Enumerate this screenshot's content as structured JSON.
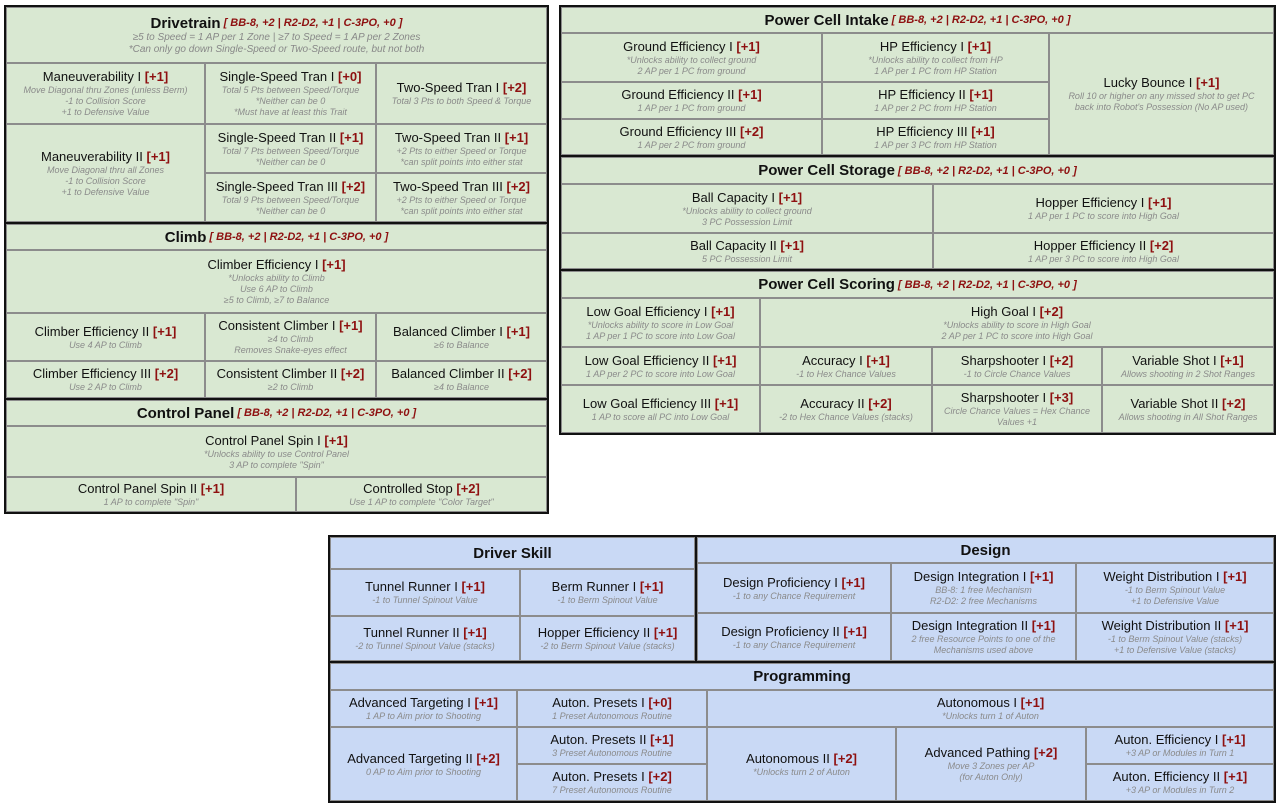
{
  "drivetrain": {
    "title": "Drivetrain",
    "costs": "[ BB-8, +2  |  R2-D2, +1  |  C-3PO, +0 ]",
    "rules": [
      "≥5 to Speed = 1 AP per 1 Zone  |  ≥7 to Speed = 1 AP per 2 Zones",
      "*Can only go down Single-Speed or Two-Speed route, but not both"
    ],
    "skills": [
      {
        "name": "Maneuverability I",
        "cost": "[+1]",
        "desc": [
          "Move Diagonal thru Zones (unless Berm)",
          "-1 to Collision Score",
          "+1 to Defensive Value"
        ]
      },
      {
        "name": "Single-Speed Tran I",
        "cost": "[+0]",
        "desc": [
          "Total 5 Pts between Speed/Torque",
          "*Neither can be 0",
          "*Must have at least this Trait"
        ]
      },
      {
        "name": "Two-Speed Tran I",
        "cost": "[+2]",
        "desc": [
          "Total 3 Pts to both Speed & Torque"
        ]
      },
      {
        "name": "Maneuverability II",
        "cost": "[+1]",
        "desc": [
          "Move Diagonal thru all Zones",
          "-1 to Collision Score",
          "+1 to Defensive Value"
        ]
      },
      {
        "name": "Single-Speed Tran II",
        "cost": "[+1]",
        "desc": [
          "Total 7 Pts between Speed/Torque",
          "*Neither can be 0"
        ]
      },
      {
        "name": "Two-Speed Tran II",
        "cost": "[+1]",
        "desc": [
          "+2 Pts to either Speed or Torque",
          "*can split points into either stat"
        ]
      },
      {
        "name": "Single-Speed Tran III",
        "cost": "[+2]",
        "desc": [
          "Total 9 Pts between Speed/Torque",
          "*Neither can be 0"
        ]
      },
      {
        "name": "Two-Speed Tran III",
        "cost": "[+2]",
        "desc": [
          "+2 Pts to either Speed or Torque",
          "*can split points into either stat"
        ]
      }
    ]
  },
  "climb": {
    "title": "Climb",
    "costs": "[ BB-8, +2  |  R2-D2, +1  |  C-3PO, +0 ]",
    "skills": [
      {
        "name": "Climber Efficiency I",
        "cost": "[+1]",
        "desc": [
          "*Unlocks ability to Climb",
          "Use 6 AP to Climb",
          "≥5 to Climb, ≥7 to Balance"
        ]
      },
      {
        "name": "Climber Efficiency II",
        "cost": "[+1]",
        "desc": [
          "Use 4 AP to Climb"
        ]
      },
      {
        "name": "Consistent Climber I",
        "cost": "[+1]",
        "desc": [
          "≥4 to Climb",
          "Removes Snake-eyes effect"
        ]
      },
      {
        "name": "Balanced Climber I",
        "cost": "[+1]",
        "desc": [
          "≥6 to Balance"
        ]
      },
      {
        "name": "Climber Efficiency III",
        "cost": "[+2]",
        "desc": [
          "Use 2 AP to Climb"
        ]
      },
      {
        "name": "Consistent Climber II",
        "cost": "[+2]",
        "desc": [
          "≥2 to Climb"
        ]
      },
      {
        "name": "Balanced Climber II",
        "cost": "[+2]",
        "desc": [
          "≥4 to Balance"
        ]
      }
    ]
  },
  "control_panel": {
    "title": "Control Panel",
    "costs": "[ BB-8, +2  |  R2-D2, +1  |  C-3PO, +0 ]",
    "skills": [
      {
        "name": "Control Panel Spin I",
        "cost": "[+1]",
        "desc": [
          "*Unlocks ability to use Control Panel",
          "3 AP to complete \"Spin\""
        ]
      },
      {
        "name": "Control Panel Spin II",
        "cost": "[+1]",
        "desc": [
          "1 AP to complete \"Spin\""
        ]
      },
      {
        "name": "Controlled Stop",
        "cost": "[+2]",
        "desc": [
          "Use 1 AP to complete \"Color Target\""
        ]
      }
    ]
  },
  "intake": {
    "title": "Power Cell Intake",
    "costs": "[ BB-8, +2  |  R2-D2, +1  |  C-3PO, +0 ]",
    "skills": [
      {
        "name": "Ground Efficiency I",
        "cost": "[+1]",
        "desc": [
          "*Unlocks ability to collect ground",
          "2 AP per 1 PC from ground"
        ]
      },
      {
        "name": "HP Efficiency I",
        "cost": "[+1]",
        "desc": [
          "*Unlocks ability to collect from HP",
          "1 AP per 1 PC from HP Station"
        ]
      },
      {
        "name": "Lucky Bounce I",
        "cost": "[+1]",
        "desc": [
          "Roll 10 or higher on any missed shot to get PC",
          "back into Robot's Possession (No AP used)"
        ]
      },
      {
        "name": "Ground Efficiency II",
        "cost": "[+1]",
        "desc": [
          "1 AP per 1 PC from ground"
        ]
      },
      {
        "name": "HP Efficiency II",
        "cost": "[+1]",
        "desc": [
          "1 AP per 2 PC from HP Station"
        ]
      },
      {
        "name": "Ground Efficiency III",
        "cost": "[+2]",
        "desc": [
          "1 AP per 2 PC from ground"
        ]
      },
      {
        "name": "HP Efficiency III",
        "cost": "[+1]",
        "desc": [
          "1 AP per 3 PC from HP Station"
        ]
      }
    ]
  },
  "storage": {
    "title": "Power Cell Storage",
    "costs": "[ BB-8, +2  |  R2-D2, +1  |  C-3PO, +0 ]",
    "skills": [
      {
        "name": "Ball Capacity I",
        "cost": "[+1]",
        "desc": [
          "*Unlocks ability to collect ground",
          "3 PC Possession Limit"
        ]
      },
      {
        "name": "Hopper Efficiency I",
        "cost": "[+1]",
        "desc": [
          "1 AP per 1 PC to score into High Goal"
        ]
      },
      {
        "name": "Ball Capacity II",
        "cost": "[+1]",
        "desc": [
          "5 PC Possession Limit"
        ]
      },
      {
        "name": "Hopper Efficiency II",
        "cost": "[+2]",
        "desc": [
          "1 AP per 3 PC to score into High Goal"
        ]
      }
    ]
  },
  "scoring": {
    "title": "Power Cell Scoring",
    "costs": "[ BB-8, +2  |  R2-D2, +1  |  C-3PO, +0 ]",
    "skills": [
      {
        "name": "Low Goal Efficiency I",
        "cost": "[+1]",
        "desc": [
          "*Unlocks ability to score in Low Goal",
          "1 AP per 1 PC to score into Low Goal"
        ]
      },
      {
        "name": "High Goal I",
        "cost": "[+2]",
        "desc": [
          "*Unlocks ability to score in High Goal",
          "2 AP per 1 PC to score into High Goal"
        ]
      },
      {
        "name": "Low Goal Efficiency II",
        "cost": "[+1]",
        "desc": [
          "1 AP per 2 PC to score into Low Goal"
        ]
      },
      {
        "name": "Accuracy I",
        "cost": "[+1]",
        "desc": [
          "-1 to Hex Chance Values"
        ]
      },
      {
        "name": "Sharpshooter I",
        "cost": "[+2]",
        "desc": [
          "-1 to Circle Chance Values"
        ]
      },
      {
        "name": "Variable Shot I",
        "cost": "[+1]",
        "desc": [
          "Allows shooting in 2 Shot Ranges"
        ]
      },
      {
        "name": "Low Goal Efficiency III",
        "cost": "[+1]",
        "desc": [
          "1 AP to score all PC into Low Goal"
        ]
      },
      {
        "name": "Accuracy II",
        "cost": "[+2]",
        "desc": [
          "-2 to Hex Chance Values (stacks)"
        ]
      },
      {
        "name": "Sharpshooter I",
        "cost": "[+3]",
        "desc": [
          "Circle Chance Values = Hex Chance",
          "Values +1"
        ]
      },
      {
        "name": "Variable Shot II",
        "cost": "[+2]",
        "desc": [
          "Allows shooting in All Shot Ranges"
        ]
      }
    ]
  },
  "driver_skill": {
    "title": "Driver Skill",
    "skills": [
      {
        "name": "Tunnel Runner I",
        "cost": "[+1]",
        "desc": [
          "-1 to Tunnel Spinout Value"
        ]
      },
      {
        "name": "Berm Runner I",
        "cost": "[+1]",
        "desc": [
          "-1 to Berm Spinout Value"
        ]
      },
      {
        "name": "Tunnel Runner II",
        "cost": "[+1]",
        "desc": [
          "-2 to Tunnel Spinout Value (stacks)"
        ]
      },
      {
        "name": "Hopper Efficiency II",
        "cost": "[+1]",
        "desc": [
          "-2 to Berm Spinout Value (stacks)"
        ]
      }
    ]
  },
  "design": {
    "title": "Design",
    "skills": [
      {
        "name": "Design Proficiency I",
        "cost": "[+1]",
        "desc": [
          "-1 to any Chance Requirement"
        ]
      },
      {
        "name": "Design Integration I",
        "cost": "[+1]",
        "desc": [
          "BB-8: 1 free Mechanism",
          "R2-D2: 2 free Mechanisms"
        ]
      },
      {
        "name": "Weight Distribution I",
        "cost": "[+1]",
        "desc": [
          "-1 to Berm Spinout Value",
          "+1 to Defensive Value"
        ]
      },
      {
        "name": "Design Proficiency II",
        "cost": "[+1]",
        "desc": [
          "-1 to any Chance Requirement"
        ]
      },
      {
        "name": "Design Integration II",
        "cost": "[+1]",
        "desc": [
          "2 free Resource Points to one of the",
          "Mechanisms used above"
        ]
      },
      {
        "name": "Weight Distribution II",
        "cost": "[+1]",
        "desc": [
          "-1 to Berm Spinout Value (stacks)",
          "+1 to Defensive Value (stacks)"
        ]
      }
    ]
  },
  "programming": {
    "title": "Programming",
    "skills": [
      {
        "name": "Advanced Targeting I",
        "cost": "[+1]",
        "desc": [
          "1 AP to Aim prior to Shooting"
        ]
      },
      {
        "name": "Auton. Presets I",
        "cost": "[+0]",
        "desc": [
          "1 Preset Autonomous Routine"
        ]
      },
      {
        "name": "Autonomous I",
        "cost": "[+1]",
        "desc": [
          "*Unlocks turn 1 of Auton"
        ]
      },
      {
        "name": "Advanced Targeting II",
        "cost": "[+2]",
        "desc": [
          "0 AP to Aim prior to Shooting"
        ]
      },
      {
        "name": "Auton. Presets II",
        "cost": "[+1]",
        "desc": [
          "3 Preset Autonomous Routine"
        ]
      },
      {
        "name": "Autonomous II",
        "cost": "[+2]",
        "desc": [
          "*Unlocks turn 2 of Auton"
        ]
      },
      {
        "name": "Advanced Pathing",
        "cost": "[+2]",
        "desc": [
          "Move 3 Zones per AP",
          "(for Auton Only)"
        ]
      },
      {
        "name": "Auton. Efficiency I",
        "cost": "[+1]",
        "desc": [
          "+3 AP or Modules in Turn 1"
        ]
      },
      {
        "name": "Auton. Presets I",
        "cost": "[+2]",
        "desc": [
          "7 Preset Autonomous Routine"
        ]
      },
      {
        "name": "Auton. Efficiency II",
        "cost": "[+1]",
        "desc": [
          "+3 AP or Modules in Turn 2"
        ]
      }
    ]
  }
}
